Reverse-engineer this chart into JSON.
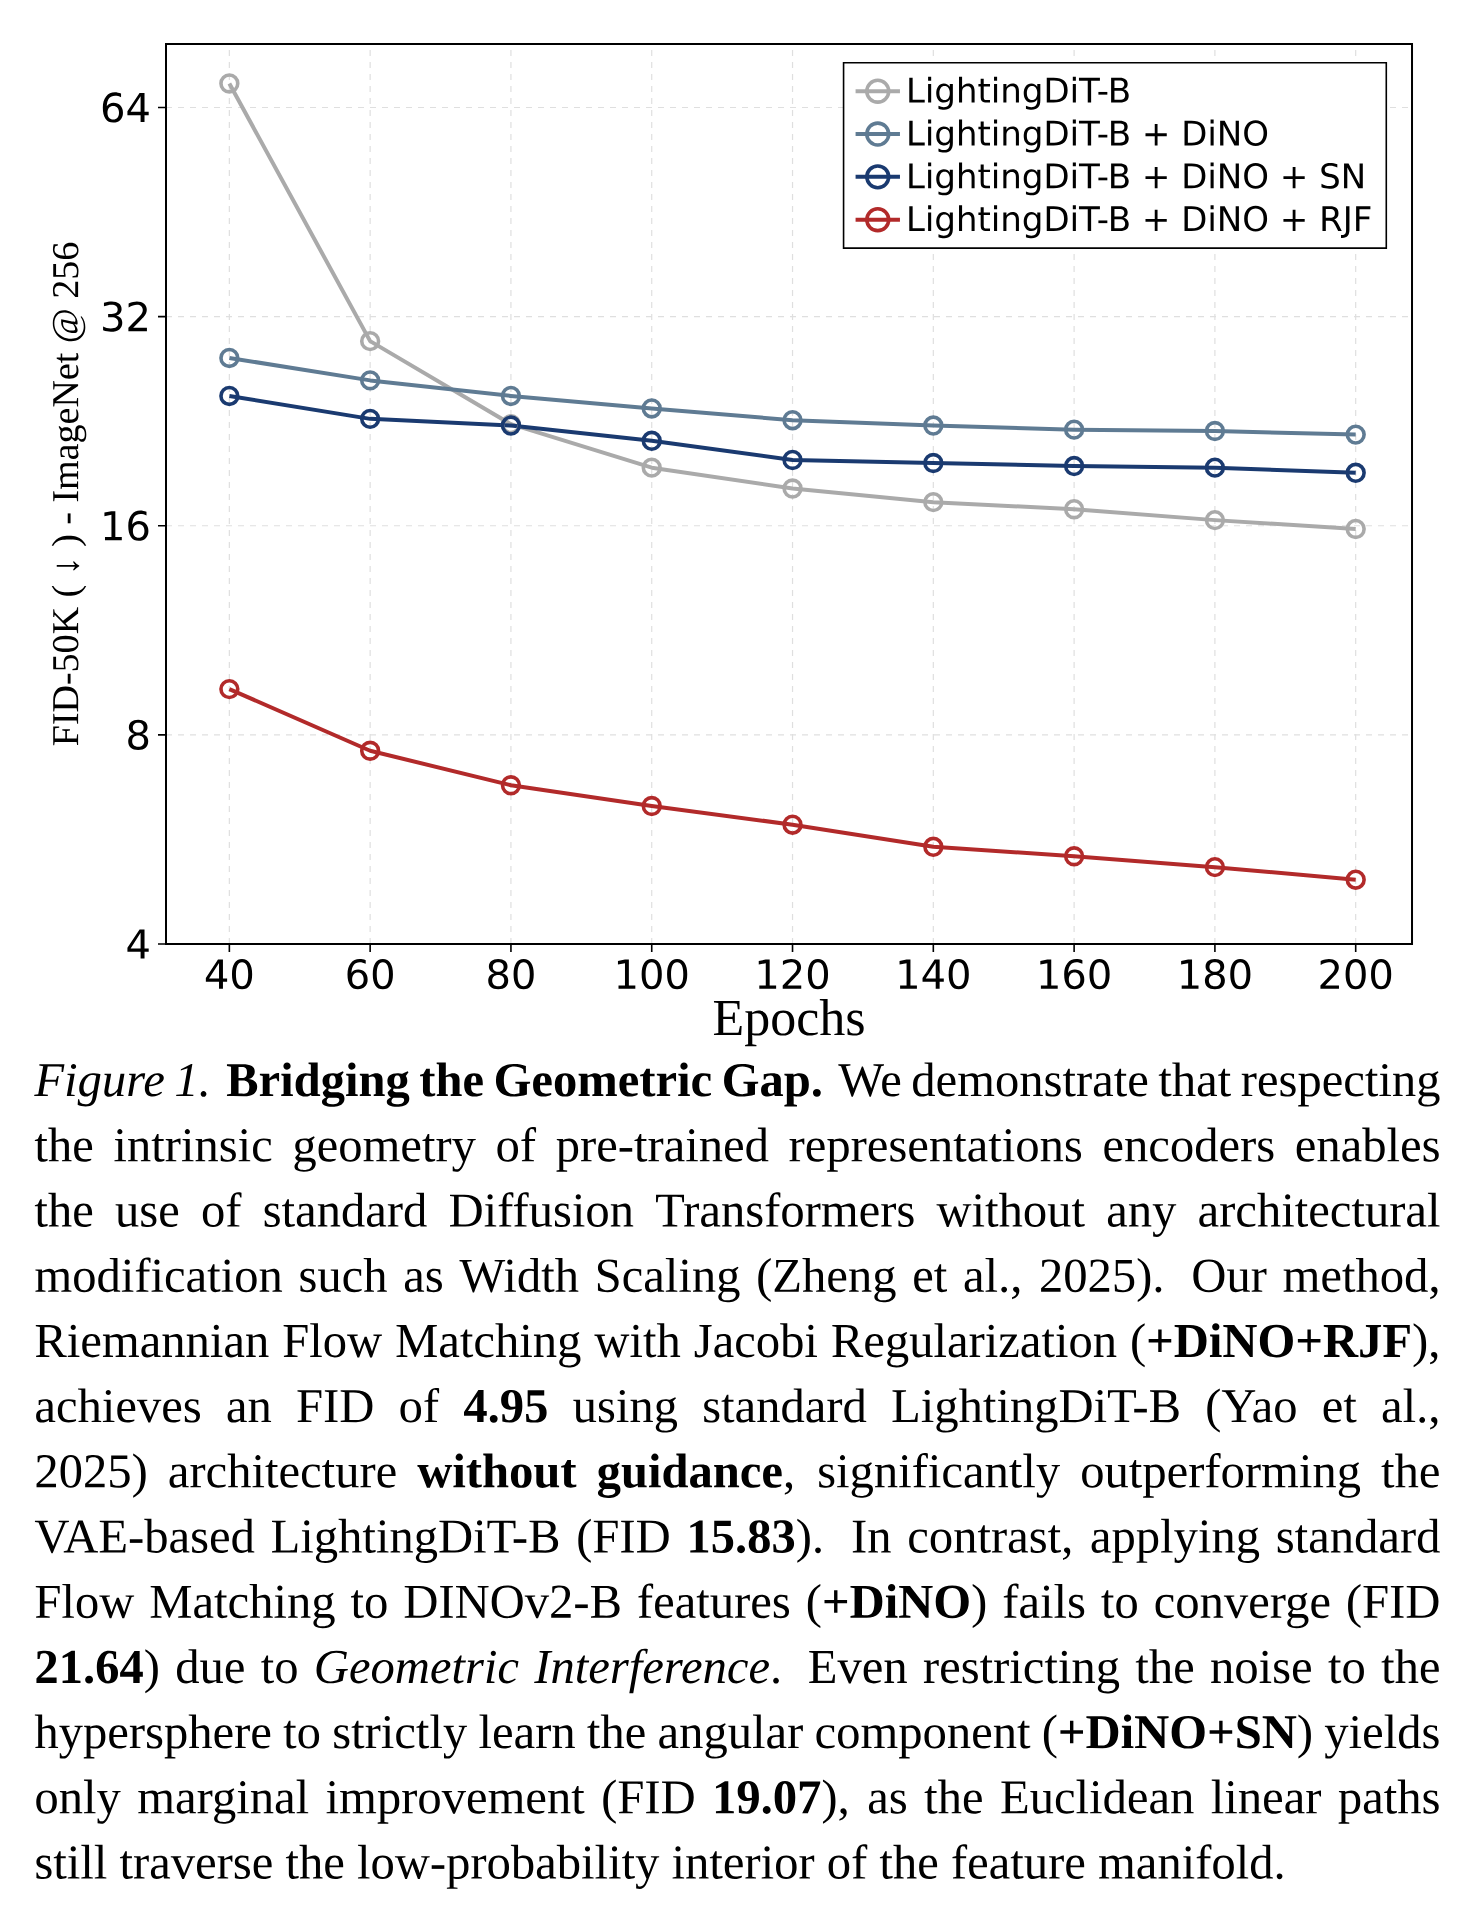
{
  "chart_data": {
    "type": "line",
    "xlabel": "Epochs",
    "ylabel": "FID-50K ( ↓ ) - ImageNet @ 256",
    "x": [
      40,
      60,
      80,
      100,
      120,
      140,
      160,
      180,
      200
    ],
    "series": [
      {
        "name": "LightingDiT-B",
        "color": "#aaaaaa",
        "values": [
          69.3,
          29.5,
          22.4,
          19.4,
          18.1,
          17.3,
          16.9,
          16.3,
          15.83
        ]
      },
      {
        "name": "LightingDiT-B + DiNO",
        "color": "#5f7b93",
        "values": [
          27.9,
          25.9,
          24.6,
          23.6,
          22.7,
          22.3,
          22.0,
          21.9,
          21.64
        ]
      },
      {
        "name": "LightingDiT-B + DiNO + SN",
        "color": "#1a3a70",
        "values": [
          24.6,
          22.8,
          22.3,
          21.2,
          19.9,
          19.7,
          19.5,
          19.4,
          19.07
        ]
      },
      {
        "name": "LightingDiT-B + DiNO + RJF",
        "color": "#b22a2a",
        "values": [
          9.31,
          7.59,
          6.77,
          6.32,
          5.94,
          5.52,
          5.35,
          5.16,
          4.95
        ]
      }
    ],
    "xlim": [
      31,
      208
    ],
    "xticks": [
      40,
      60,
      80,
      100,
      120,
      140,
      160,
      180,
      200
    ],
    "ylim": [
      4,
      79
    ],
    "yticks": [
      4,
      8,
      16,
      32,
      64
    ],
    "log": "y",
    "grid": true,
    "legend": "top right",
    "marker": "circle",
    "line_style": "solid",
    "annotations": [
      "*Figure 1.*  **Bridging the Geometric Gap.** We demonstrate that respecting the intrinsic geometry of pre-trained representations encoders enables the use of standard Diffusion Transformers without any architectural modification such as Width Scaling (Zheng et al., 2025). Our method, Riemannian Flow Matching with Jacobi Regularization (**+DiNO+RJF**), achieves an FID of **4.95** using standard LightingDiT-B (Yao et al., 2025) architecture **without guidance**, significantly outperforming the VAE-based LightingDiT-B (FID **15.83**). In contrast, applying standard Flow Matching to DINOv2-B features (**+DiNO**) fails to converge (FID **21.64**) due to *Geometric Interference*. Even restricting the noise to the hypersphere to strictly learn the angular component (**+DiNO+SN**) yields only marginal improvement (FID **19.07**), as the Euclidean linear paths still traverse the low-probability interior of the feature manifold."
    ]
  }
}
